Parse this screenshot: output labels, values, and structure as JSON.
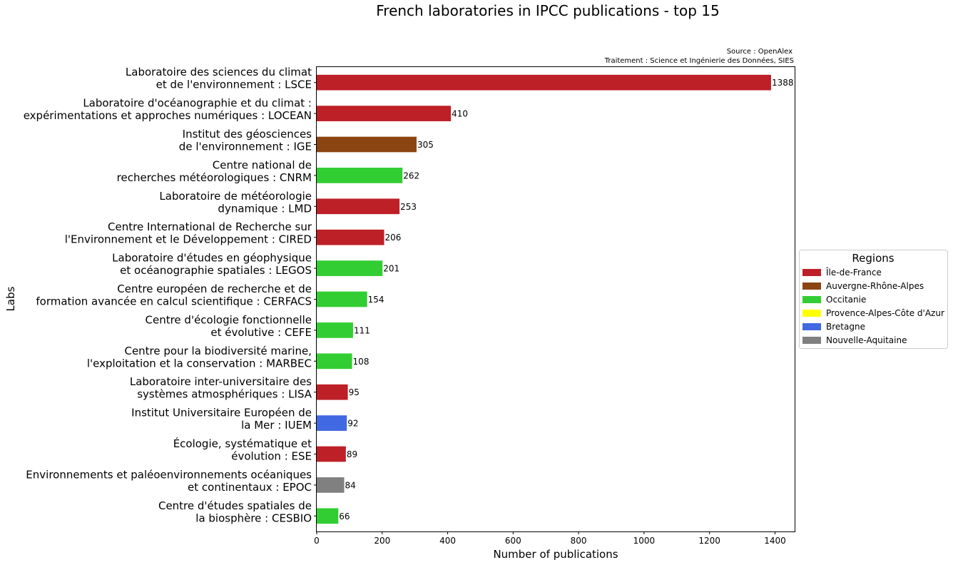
{
  "chart_data": {
    "type": "bar",
    "orientation": "horizontal",
    "title": "French laboratories in IPCC publications - top 15",
    "source_line1": "Source : OpenAlex",
    "source_line2": "Traitement : Science et Ingénierie des Données, SIES",
    "xlabel": "Number of publications",
    "ylabel": "Labs",
    "xlim": [
      0,
      1460
    ],
    "xticks": [
      0,
      200,
      400,
      600,
      800,
      1000,
      1200,
      1400
    ],
    "grid": false,
    "legend": {
      "title": "Regions",
      "placement": "right",
      "entries": [
        {
          "label": "Île-de-France",
          "color": "#BE2027"
        },
        {
          "label": "Auvergne-Rhône-Alpes",
          "color": "#8B4513"
        },
        {
          "label": "Occitanie",
          "color": "#32CD32"
        },
        {
          "label": "Provence-Alpes-Côte d'Azur",
          "color": "#FFFF00"
        },
        {
          "label": "Bretagne",
          "color": "#4169E1"
        },
        {
          "label": "Nouvelle-Aquitaine",
          "color": "#808080"
        }
      ]
    },
    "bars": [
      {
        "label_lines": [
          "Laboratoire des sciences du climat",
          "et de l'environnement : LSCE"
        ],
        "value": 1388,
        "region": "Île-de-France"
      },
      {
        "label_lines": [
          "Laboratoire d'océanographie et du climat :",
          "expérimentations et approches numériques : LOCEAN"
        ],
        "value": 410,
        "region": "Île-de-France"
      },
      {
        "label_lines": [
          "Institut des géosciences",
          "de l'environnement : IGE"
        ],
        "value": 305,
        "region": "Auvergne-Rhône-Alpes"
      },
      {
        "label_lines": [
          "Centre national de",
          "recherches météorologiques : CNRM"
        ],
        "value": 262,
        "region": "Occitanie"
      },
      {
        "label_lines": [
          "Laboratoire de météorologie",
          "dynamique : LMD"
        ],
        "value": 253,
        "region": "Île-de-France"
      },
      {
        "label_lines": [
          "Centre International de Recherche sur",
          "l'Environnement et le Développement : CIRED"
        ],
        "value": 206,
        "region": "Île-de-France"
      },
      {
        "label_lines": [
          "Laboratoire d'études en géophysique",
          "et océanographie spatiales : LEGOS"
        ],
        "value": 201,
        "region": "Occitanie"
      },
      {
        "label_lines": [
          "Centre européen de recherche et de",
          "formation avancée en calcul scientifique : CERFACS"
        ],
        "value": 154,
        "region": "Occitanie"
      },
      {
        "label_lines": [
          "Centre d'écologie fonctionnelle",
          "et évolutive : CEFE"
        ],
        "value": 111,
        "region": "Occitanie"
      },
      {
        "label_lines": [
          "Centre pour la biodiversité marine,",
          "l'exploitation et la conservation : MARBEC"
        ],
        "value": 108,
        "region": "Occitanie"
      },
      {
        "label_lines": [
          "Laboratoire inter-universitaire des",
          "systèmes atmosphériques : LISA"
        ],
        "value": 95,
        "region": "Île-de-France"
      },
      {
        "label_lines": [
          "Institut Universitaire Européen de",
          "la Mer : IUEM"
        ],
        "value": 92,
        "region": "Bretagne"
      },
      {
        "label_lines": [
          "Écologie, systématique et",
          "évolution : ESE"
        ],
        "value": 89,
        "region": "Île-de-France"
      },
      {
        "label_lines": [
          "Environnements et paléoenvironnements océaniques",
          "et continentaux : EPOC"
        ],
        "value": 84,
        "region": "Nouvelle-Aquitaine"
      },
      {
        "label_lines": [
          "Centre d'études spatiales de",
          "la biosphère : CESBIO"
        ],
        "value": 66,
        "region": "Occitanie"
      }
    ]
  }
}
